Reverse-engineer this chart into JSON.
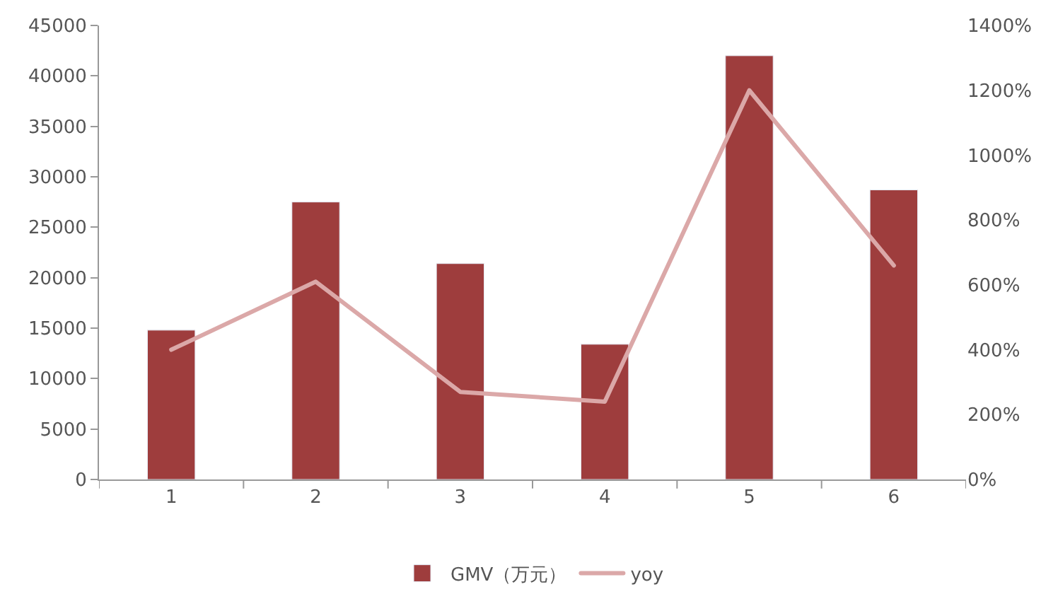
{
  "chart_data": {
    "type": "bar",
    "categories": [
      "1",
      "2",
      "3",
      "4",
      "5",
      "6"
    ],
    "series": [
      {
        "name": "GMV（万元）",
        "color": "#9e3d3d",
        "values": [
          14800,
          27500,
          21400,
          13400,
          42000,
          28700
        ]
      },
      {
        "name": "yoy",
        "type": "line",
        "axis": "y2",
        "color": "#dba8a8",
        "marker": "none",
        "values": [
          400,
          610,
          270,
          240,
          1200,
          660
        ]
      }
    ],
    "ylim": [
      0,
      45000
    ],
    "yticks": [
      0,
      5000,
      10000,
      15000,
      20000,
      25000,
      30000,
      35000,
      40000,
      45000
    ],
    "y2lim": [
      0,
      1400
    ],
    "y2ticks": [
      {
        "value": 0,
        "label": "0%"
      },
      {
        "value": 200,
        "label": "200%"
      },
      {
        "value": 400,
        "label": "400%"
      },
      {
        "value": 600,
        "label": "600%"
      },
      {
        "value": 800,
        "label": "800%"
      },
      {
        "value": 1000,
        "label": "1000%"
      },
      {
        "value": 1200,
        "label": "1200%"
      },
      {
        "value": 1400,
        "label": "1400%"
      }
    ],
    "legend": "bottom"
  }
}
